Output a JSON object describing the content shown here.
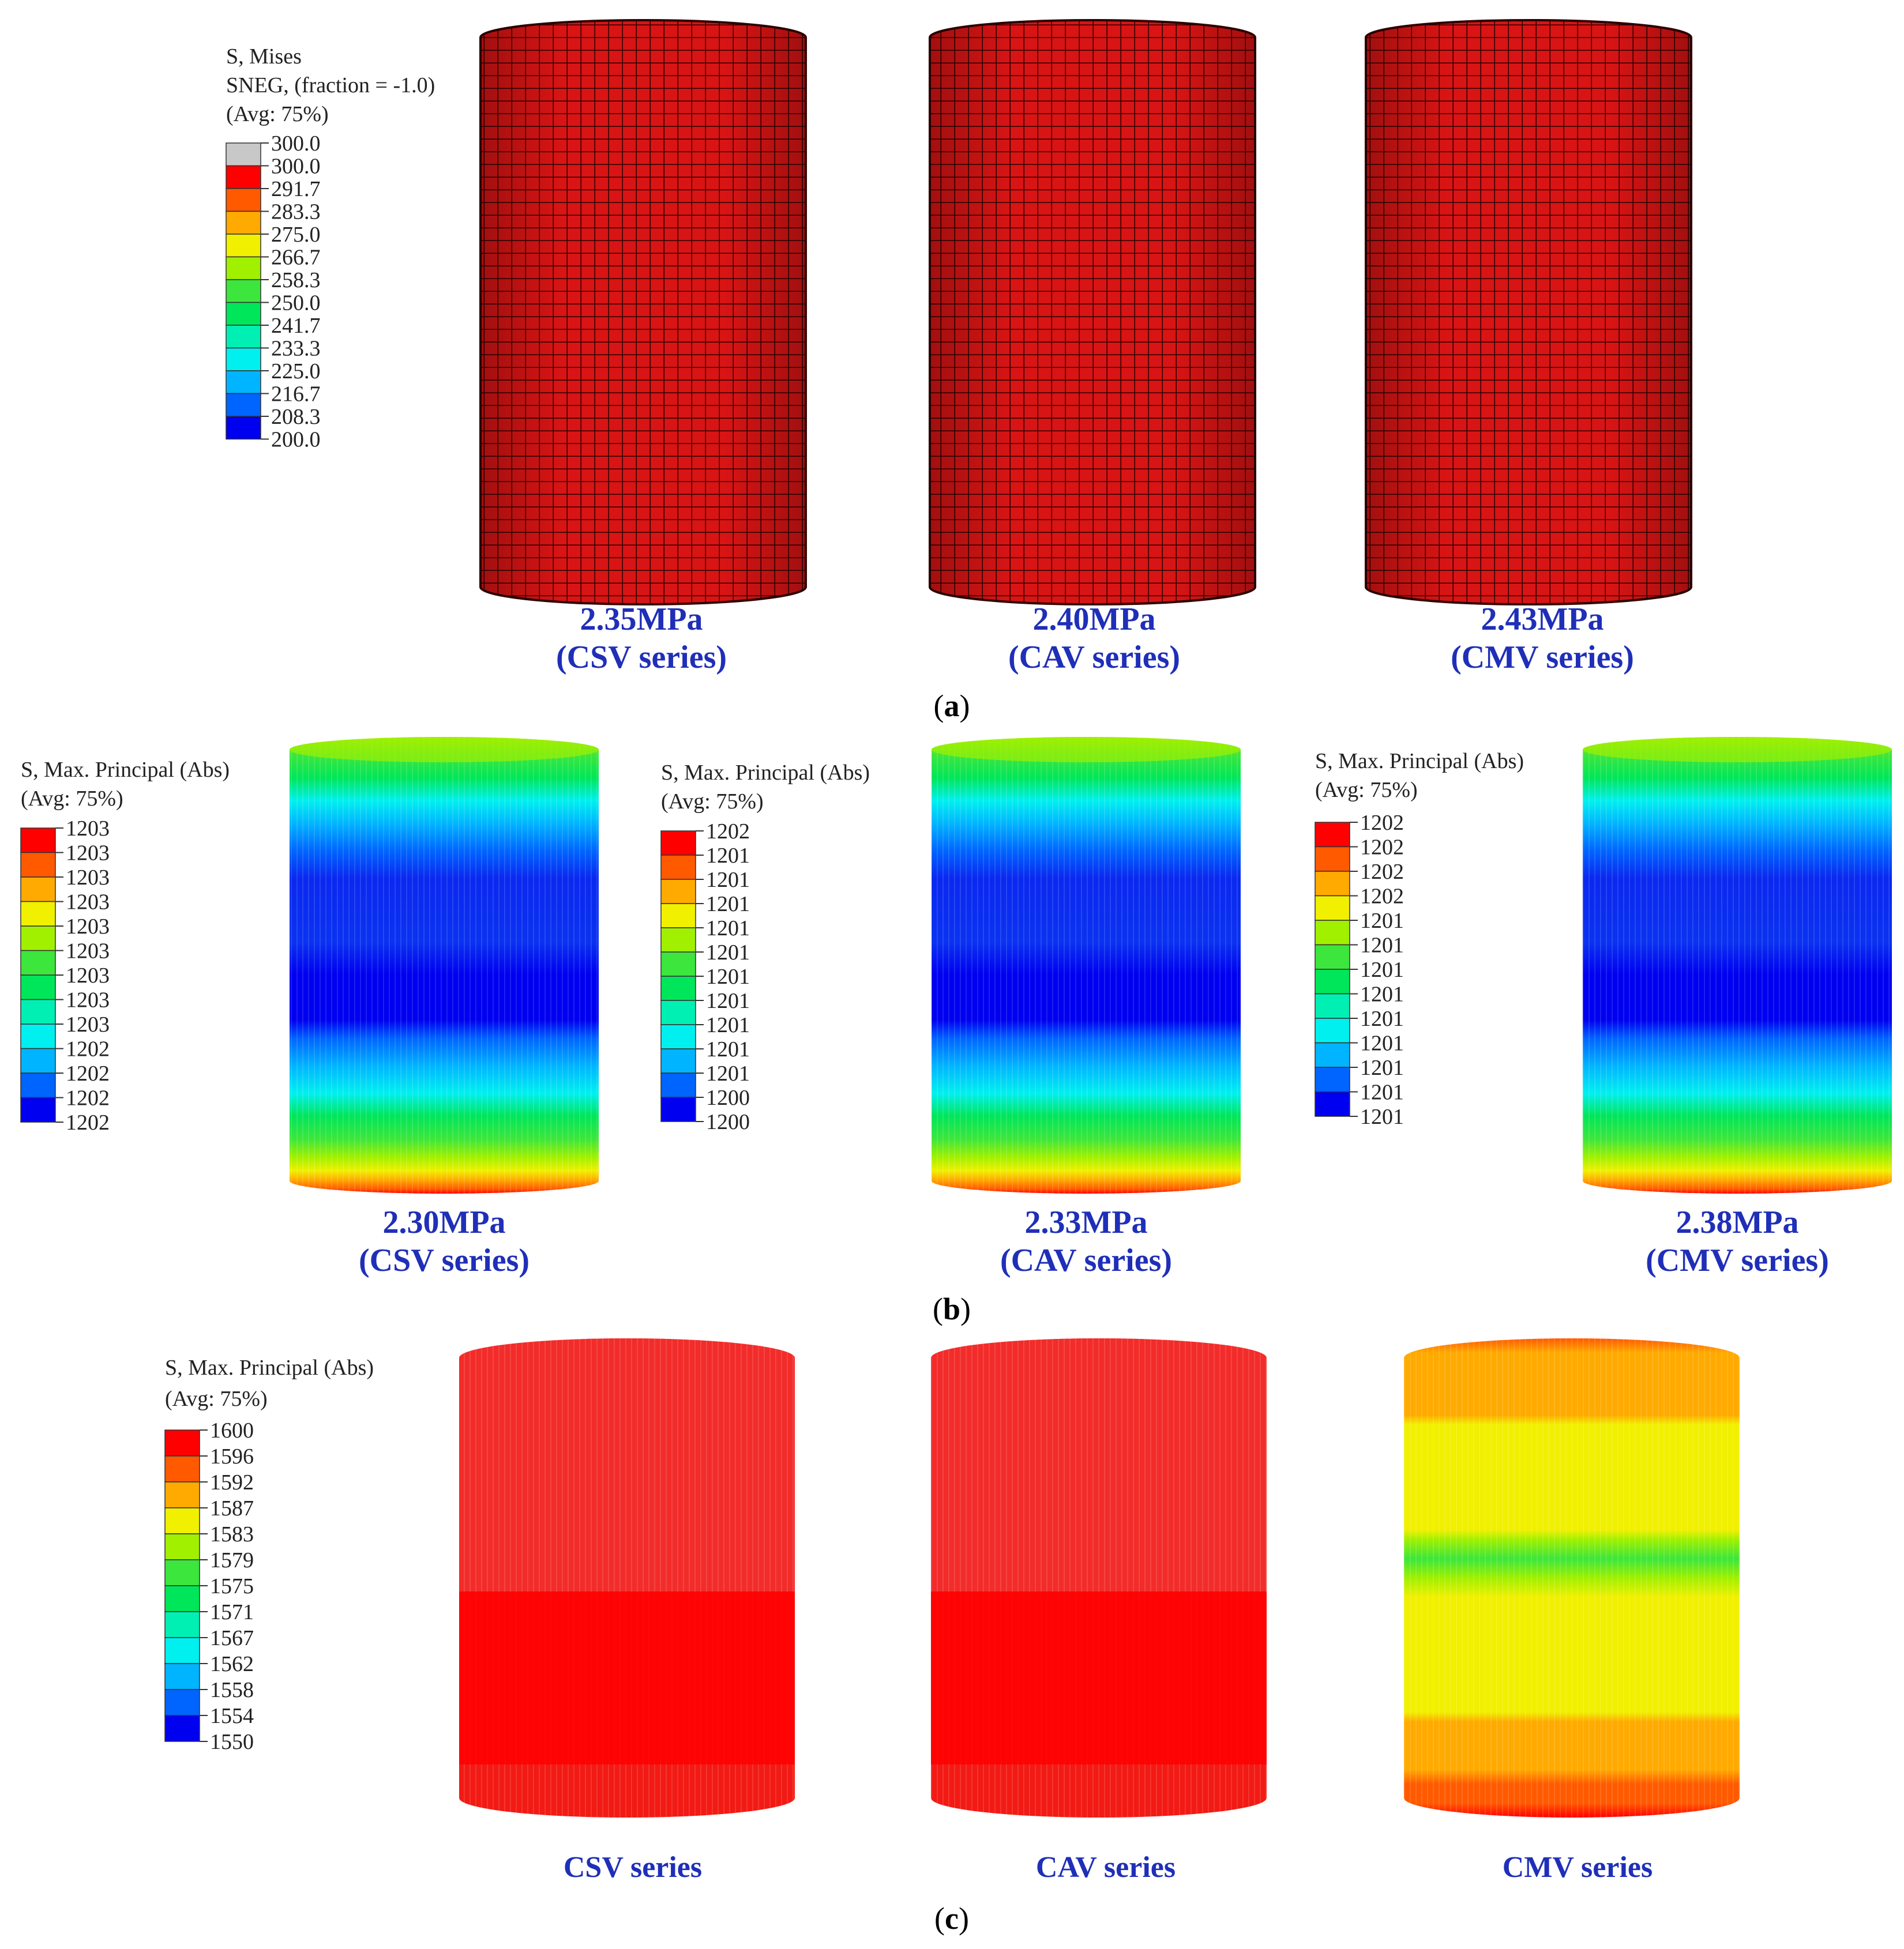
{
  "panels": {
    "a": {
      "label_open": "(",
      "label_letter": "a",
      "label_close": ")",
      "legend": {
        "title_lines": [
          "S, Mises",
          "SNEG, (fraction = -1.0)",
          "(Avg: 75%)"
        ],
        "ticks": [
          "300.0",
          "300.0",
          "291.7",
          "283.3",
          "275.0",
          "266.7",
          "258.3",
          "250.0",
          "241.7",
          "233.3",
          "225.0",
          "216.7",
          "208.3",
          "200.0"
        ],
        "colors": [
          "#c8c8c8",
          "#ff0000",
          "#ff5a00",
          "#ffaa00",
          "#f0f000",
          "#a0f000",
          "#3ce63c",
          "#00e65a",
          "#00f0b4",
          "#00f0f0",
          "#00b4ff",
          "#0064ff",
          "#0000f0"
        ]
      },
      "cylinder_fill": "#d81414",
      "captions": [
        {
          "line1": "2.35MPa",
          "line2": "(CSV series)"
        },
        {
          "line1": "2.40MPa",
          "line2": "(CAV series)"
        },
        {
          "line1": "2.43MPa",
          "line2": "(CMV series)"
        }
      ]
    },
    "b": {
      "label_open": "(",
      "label_letter": "b",
      "label_close": ")",
      "legends": [
        {
          "title_lines": [
            "S, Max. Principal (Abs)",
            "(Avg: 75%)"
          ],
          "ticks": [
            "1203",
            "1203",
            "1203",
            "1203",
            "1203",
            "1203",
            "1203",
            "1203",
            "1203",
            "1202",
            "1202",
            "1202",
            "1202"
          ]
        },
        {
          "title_lines": [
            "S, Max. Principal (Abs)",
            "(Avg: 75%)"
          ],
          "ticks": [
            "1202",
            "1201",
            "1201",
            "1201",
            "1201",
            "1201",
            "1201",
            "1201",
            "1201",
            "1201",
            "1201",
            "1200",
            "1200"
          ]
        },
        {
          "title_lines": [
            "S, Max. Principal (Abs)",
            "(Avg: 75%)"
          ],
          "ticks": [
            "1202",
            "1202",
            "1202",
            "1202",
            "1201",
            "1201",
            "1201",
            "1201",
            "1201",
            "1201",
            "1201",
            "1201",
            "1201"
          ]
        }
      ],
      "colors": [
        "#ff0000",
        "#ff5a00",
        "#ffaa00",
        "#f0f000",
        "#a0f000",
        "#3ce63c",
        "#00e65a",
        "#00f0b4",
        "#00f0f0",
        "#00b4ff",
        "#0064ff",
        "#0000f0"
      ],
      "captions": [
        {
          "line1": "2.30MPa",
          "line2": "(CSV series)"
        },
        {
          "line1": "2.33MPa",
          "line2": "(CAV series)"
        },
        {
          "line1": "2.38MPa",
          "line2": "(CMV series)"
        }
      ]
    },
    "c": {
      "label_open": "(",
      "label_letter": "c",
      "label_close": ")",
      "legend": {
        "title_lines": [
          "S, Max. Principal (Abs)",
          "(Avg: 75%)"
        ],
        "ticks": [
          "1600",
          "1596",
          "1592",
          "1587",
          "1583",
          "1579",
          "1575",
          "1571",
          "1567",
          "1562",
          "1558",
          "1554",
          "1550"
        ],
        "colors": [
          "#ff0000",
          "#ff5a00",
          "#ffaa00",
          "#f0f000",
          "#a0f000",
          "#3ce63c",
          "#00e65a",
          "#00f0b4",
          "#00f0f0",
          "#00b4ff",
          "#0064ff",
          "#0000f0"
        ]
      },
      "captions": [
        "CSV series",
        "CAV series",
        "CMV series"
      ]
    }
  }
}
